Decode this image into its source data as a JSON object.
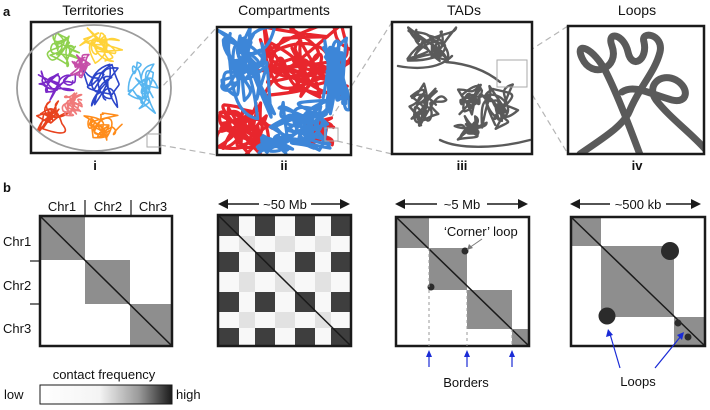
{
  "panel_a": {
    "letter": "a",
    "titles": [
      "Territories",
      "Compartments",
      "TADs",
      "Loops"
    ],
    "numerals": [
      "i",
      "ii",
      "iii",
      "iv"
    ],
    "territory_colors": [
      "#e8421e",
      "#ff8c1a",
      "#8fd14f",
      "#ffd23a",
      "#7a28c8",
      "#2b45c9",
      "#58b6f0",
      "#f07a7a",
      "#c64da8"
    ],
    "compartment_colors": {
      "a": "#e8262d",
      "b": "#3d86d8"
    },
    "polymer_color": "#5a5a5a"
  },
  "panel_b": {
    "letter": "b",
    "chromosomes": [
      "Chr1",
      "Chr2",
      "Chr3"
    ],
    "scales": [
      "~50 Mb",
      "~5 Mb",
      "~500 kb"
    ],
    "corner_loop_label": "‘Corner’ loop",
    "borders_label": "Borders",
    "loops_label": "Loops",
    "arrow_color": "#1a2bd6",
    "colorbar": {
      "title": "contact frequency",
      "low": "low",
      "high": "high"
    }
  }
}
